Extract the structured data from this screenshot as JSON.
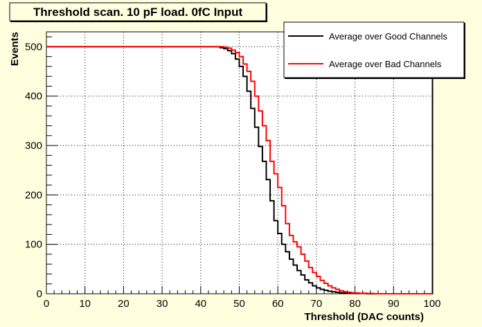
{
  "chart_data": {
    "type": "line",
    "title": "Threshold scan. 10 pF load. 0fC Input",
    "xlabel": "Threshold (DAC counts)",
    "ylabel": "Events",
    "xlim": [
      0,
      100
    ],
    "ylim": [
      0,
      530
    ],
    "x_ticks": [
      "0",
      "10",
      "20",
      "30",
      "40",
      "50",
      "60",
      "70",
      "80",
      "90",
      "100"
    ],
    "y_ticks": [
      "0",
      "100",
      "200",
      "300",
      "400",
      "500"
    ],
    "grid": true,
    "legend_position": "top-right",
    "colors": {
      "background": "#ffffe0",
      "plot_background": "#ffffff",
      "good": "#000000",
      "bad": "#ff0000"
    },
    "series": [
      {
        "name": "Average over Good Channels",
        "color": "#000000",
        "x": [
          0,
          44,
          45,
          46,
          47,
          48,
          49,
          50,
          51,
          52,
          53,
          54,
          55,
          56,
          57,
          58,
          59,
          60,
          61,
          62,
          63,
          64,
          65,
          66,
          67,
          68,
          69,
          70,
          71,
          72,
          73,
          74,
          75,
          76,
          77,
          78,
          79,
          80,
          81,
          82,
          83,
          84,
          85,
          86,
          87,
          100
        ],
        "y": [
          500,
          500,
          498,
          496,
          492,
          486,
          475,
          460,
          440,
          410,
          375,
          337,
          298,
          268,
          231,
          188,
          148,
          122,
          100,
          85,
          70,
          58,
          47,
          38,
          28,
          22,
          16,
          12,
          9,
          7,
          5,
          4,
          3,
          2,
          1.5,
          1,
          1,
          0.5,
          0.5,
          0.5,
          0,
          0,
          0,
          0,
          0,
          0
        ]
      },
      {
        "name": "Average over Bad Channels",
        "color": "#ff0000",
        "x": [
          0,
          45,
          46,
          47,
          48,
          49,
          50,
          51,
          52,
          53,
          54,
          55,
          56,
          57,
          58,
          59,
          60,
          61,
          62,
          63,
          64,
          65,
          66,
          67,
          68,
          69,
          70,
          71,
          72,
          73,
          74,
          75,
          76,
          77,
          78,
          79,
          80,
          81,
          82,
          83,
          84,
          85,
          86,
          87,
          88,
          100
        ],
        "y": [
          500,
          500,
          499,
          497,
          493,
          488,
          480,
          465,
          450,
          430,
          400,
          370,
          340,
          310,
          268,
          243,
          215,
          178,
          142,
          118,
          105,
          95,
          80,
          66,
          53,
          43,
          35,
          27,
          21,
          16,
          12,
          9,
          6,
          4,
          3,
          2,
          1.5,
          1,
          1,
          0.5,
          0.5,
          0,
          0,
          0,
          0,
          0
        ]
      }
    ]
  }
}
